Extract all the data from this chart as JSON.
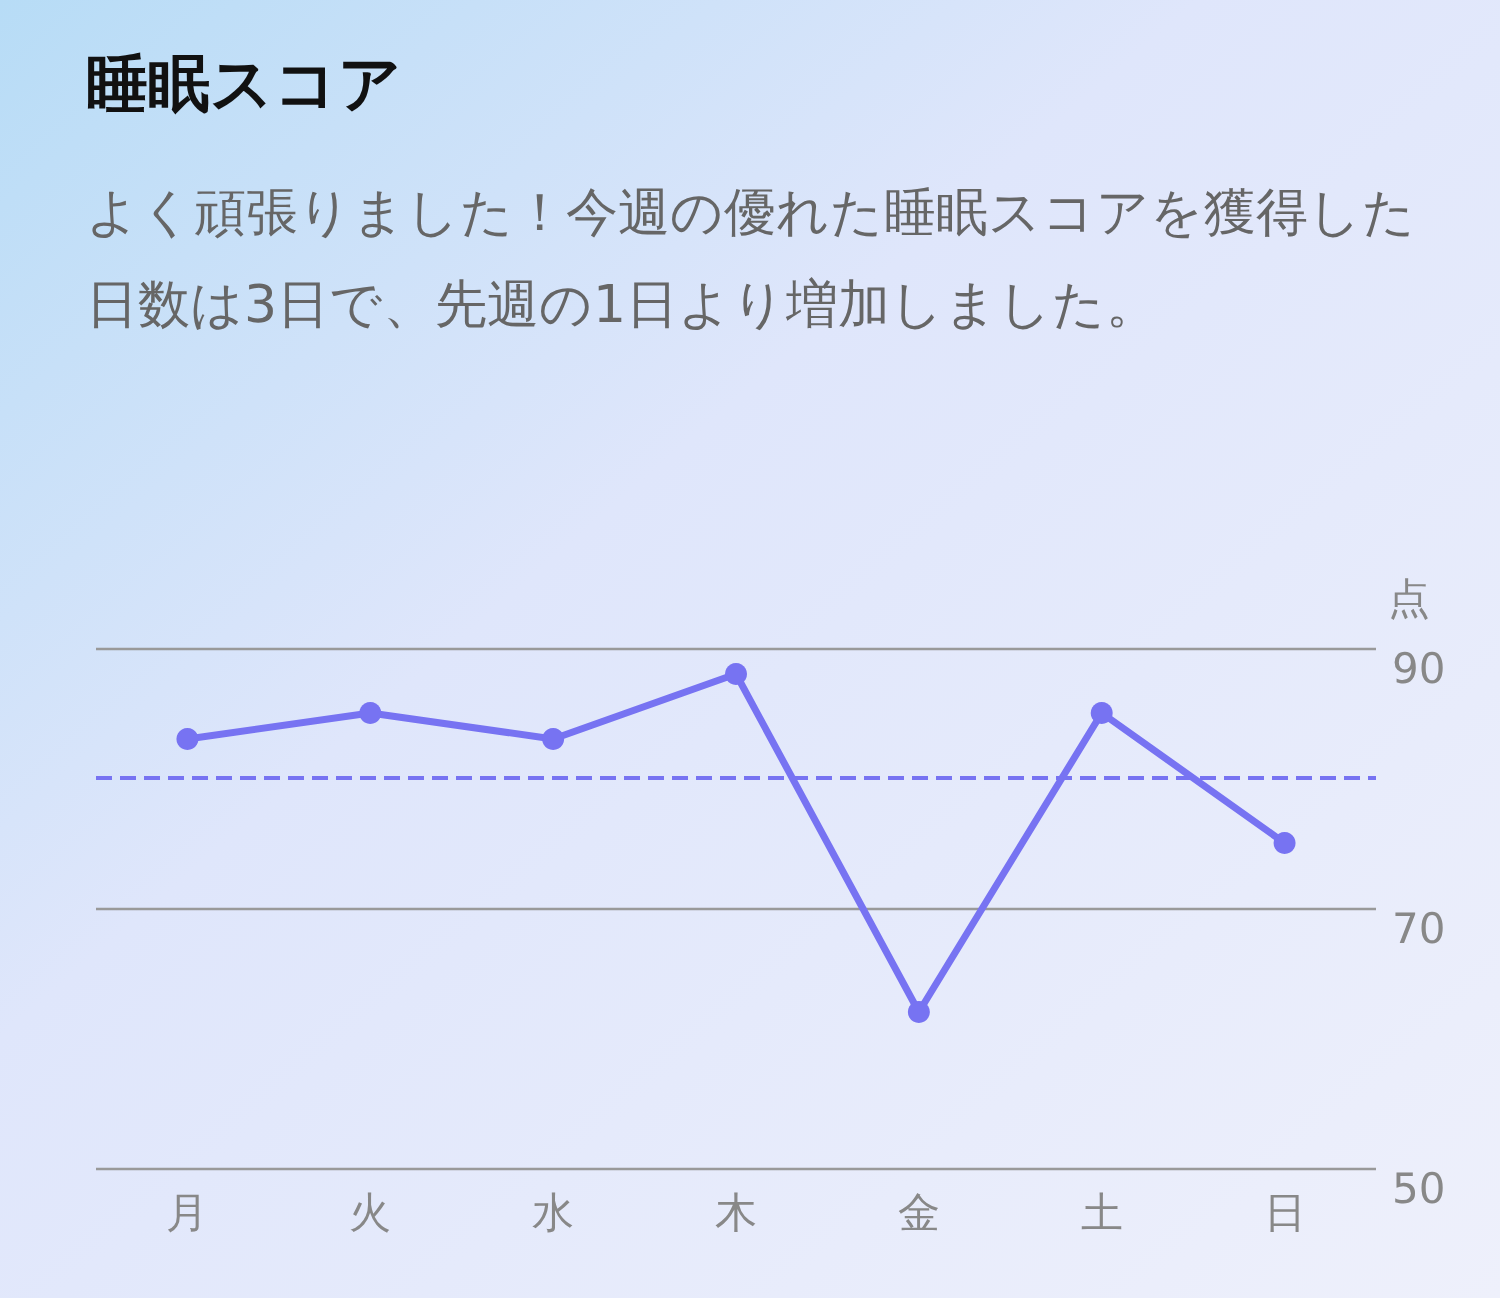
{
  "chart_data": {
    "type": "line",
    "title": "睡眠スコア",
    "subtitle": "よく頑張りました！今週の優れた睡眠スコアを獲得した日数は3日で、先週の1日より増加しました。",
    "ylabel": "点",
    "categories": [
      "月",
      "火",
      "水",
      "木",
      "金",
      "土",
      "日"
    ],
    "series": [
      {
        "color": "#7773f2",
        "values": [
          83,
          85,
          83,
          88,
          62,
          85,
          75
        ]
      }
    ],
    "ylim": [
      50,
      90
    ],
    "yticks": [
      50,
      70,
      90
    ],
    "grid": "y",
    "marker": "circle",
    "line_style": "solid",
    "ref_lines": [
      {
        "axis": "y",
        "value": 80,
        "color": "#7773f2",
        "line_style": "dashed"
      }
    ]
  }
}
